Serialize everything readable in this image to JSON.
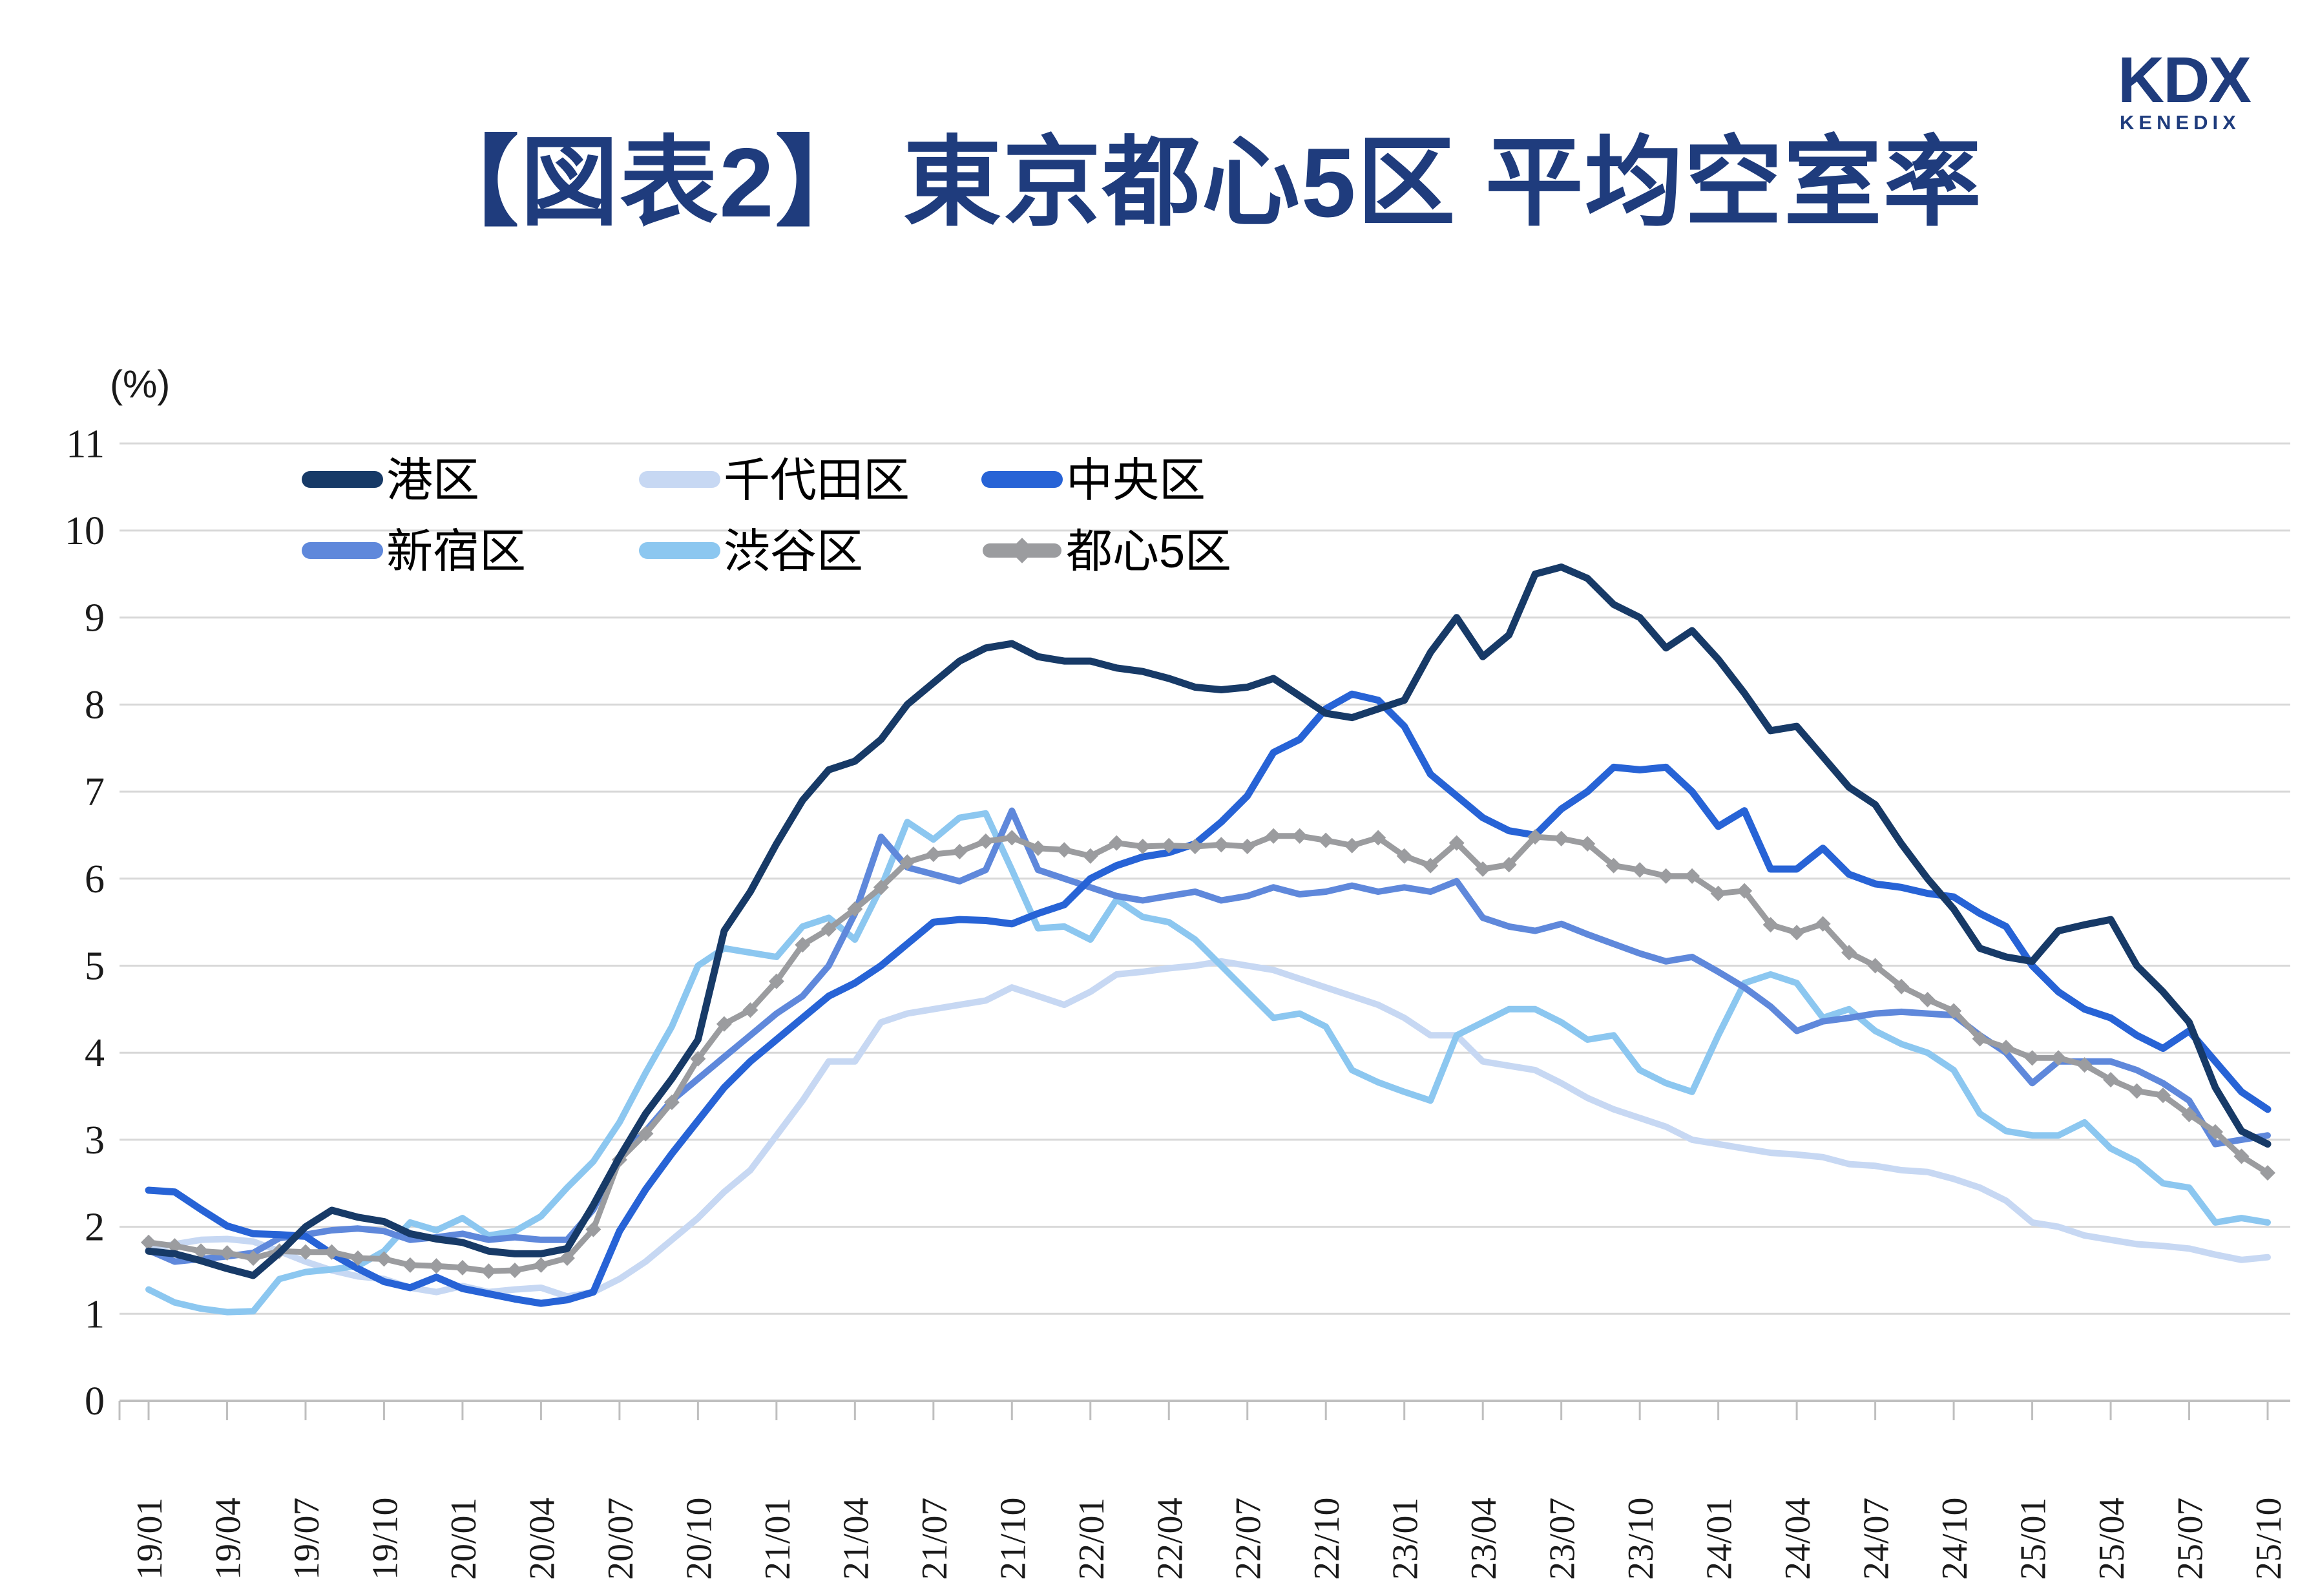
{
  "logo": {
    "brand": "KDX",
    "sub": "KENEDIX"
  },
  "title": "【図表2】 東京都心5区 平均空室率",
  "y_axis": {
    "unit_label": "(%)",
    "ticks": [
      0,
      1,
      2,
      3,
      4,
      5,
      6,
      7,
      8,
      9,
      10,
      11
    ]
  },
  "x_axis": {
    "tick_labels": [
      "19/01",
      "19/04",
      "19/07",
      "19/10",
      "20/01",
      "20/04",
      "20/07",
      "20/10",
      "21/01",
      "21/04",
      "21/07",
      "21/10",
      "22/01",
      "22/04",
      "22/07",
      "22/10",
      "23/01",
      "23/04",
      "23/07",
      "23/10",
      "24/01",
      "24/04",
      "24/07",
      "24/10",
      "25/01",
      "25/04",
      "25/07",
      "25/10"
    ]
  },
  "chart_data": {
    "type": "line",
    "title": "【図表2】 東京都心5区 平均空室率",
    "ylabel": "(%)",
    "ylim": [
      0,
      11
    ],
    "grid": true,
    "legend_position": "top-left-inside",
    "x_start": "19/01",
    "x_step_months": 1,
    "x": [
      "19/01",
      "19/02",
      "19/03",
      "19/04",
      "19/05",
      "19/06",
      "19/07",
      "19/08",
      "19/09",
      "19/10",
      "19/11",
      "19/12",
      "20/01",
      "20/02",
      "20/03",
      "20/04",
      "20/05",
      "20/06",
      "20/07",
      "20/08",
      "20/09",
      "20/10",
      "20/11",
      "20/12",
      "21/01",
      "21/02",
      "21/03",
      "21/04",
      "21/05",
      "21/06",
      "21/07",
      "21/08",
      "21/09",
      "21/10",
      "21/11",
      "21/12",
      "22/01",
      "22/02",
      "22/03",
      "22/04",
      "22/05",
      "22/06",
      "22/07",
      "22/08",
      "22/09",
      "22/10",
      "22/11",
      "22/12",
      "23/01",
      "23/02",
      "23/03",
      "23/04",
      "23/05",
      "23/06",
      "23/07",
      "23/08",
      "23/09",
      "23/10",
      "23/11",
      "23/12",
      "24/01",
      "24/02",
      "24/03",
      "24/04",
      "24/05",
      "24/06",
      "24/07",
      "24/08",
      "24/09",
      "24/10",
      "24/11",
      "24/12",
      "25/01",
      "25/02",
      "25/03",
      "25/04",
      "25/05",
      "25/06",
      "25/07",
      "25/08",
      "25/09",
      "25/10"
    ],
    "series": [
      {
        "name": "港区",
        "color": "#173A67",
        "marker": "none",
        "stroke_width": 11,
        "values": [
          1.72,
          1.69,
          1.61,
          1.52,
          1.44,
          1.7,
          2.0,
          2.19,
          2.11,
          2.06,
          1.92,
          1.86,
          1.82,
          1.72,
          1.69,
          1.69,
          1.75,
          2.25,
          2.8,
          3.3,
          3.7,
          4.15,
          5.4,
          5.85,
          6.4,
          6.9,
          7.25,
          7.35,
          7.6,
          8.0,
          8.25,
          8.5,
          8.65,
          8.7,
          8.55,
          8.5,
          8.5,
          8.42,
          8.38,
          8.3,
          8.2,
          8.17,
          8.2,
          8.3,
          8.1,
          7.9,
          7.85,
          7.95,
          8.05,
          8.6,
          9.0,
          8.55,
          8.8,
          9.5,
          9.58,
          9.45,
          9.15,
          9.0,
          8.65,
          8.85,
          8.52,
          8.13,
          7.7,
          7.75,
          7.4,
          7.05,
          6.85,
          6.4,
          6.0,
          5.65,
          5.2,
          5.1,
          5.05,
          5.4,
          5.47,
          5.53,
          5.0,
          4.7,
          4.35,
          3.6,
          3.1,
          2.95
        ]
      },
      {
        "name": "千代田区",
        "color": "#C7D8F3",
        "marker": "none",
        "stroke_width": 10,
        "values": [
          1.75,
          1.8,
          1.85,
          1.86,
          1.83,
          1.72,
          1.6,
          1.5,
          1.43,
          1.4,
          1.3,
          1.25,
          1.32,
          1.25,
          1.28,
          1.3,
          1.2,
          1.25,
          1.4,
          1.6,
          1.85,
          2.1,
          2.4,
          2.65,
          3.05,
          3.45,
          3.9,
          3.9,
          4.35,
          4.45,
          4.5,
          4.55,
          4.6,
          4.75,
          4.65,
          4.55,
          4.7,
          4.9,
          4.93,
          4.97,
          5.0,
          5.05,
          5.0,
          4.95,
          4.85,
          4.75,
          4.65,
          4.55,
          4.4,
          4.2,
          4.2,
          3.9,
          3.85,
          3.8,
          3.65,
          3.48,
          3.35,
          3.25,
          3.15,
          3.0,
          2.95,
          2.9,
          2.85,
          2.83,
          2.8,
          2.72,
          2.7,
          2.65,
          2.63,
          2.55,
          2.45,
          2.3,
          2.05,
          2.0,
          1.9,
          1.85,
          1.8,
          1.78,
          1.75,
          1.68,
          1.62,
          1.65
        ]
      },
      {
        "name": "中央区",
        "color": "#2763D6",
        "marker": "none",
        "stroke_width": 11,
        "values": [
          2.42,
          2.4,
          2.2,
          2.01,
          1.92,
          1.91,
          1.89,
          1.69,
          1.52,
          1.37,
          1.3,
          1.42,
          1.29,
          1.23,
          1.17,
          1.12,
          1.16,
          1.25,
          1.95,
          2.43,
          2.84,
          3.22,
          3.6,
          3.9,
          4.15,
          4.4,
          4.65,
          4.8,
          5.0,
          5.25,
          5.5,
          5.53,
          5.52,
          5.48,
          5.6,
          5.7,
          6.0,
          6.15,
          6.25,
          6.3,
          6.4,
          6.65,
          6.95,
          7.45,
          7.6,
          7.95,
          8.12,
          8.05,
          7.75,
          7.2,
          6.95,
          6.7,
          6.55,
          6.5,
          6.8,
          7.0,
          7.28,
          7.25,
          7.28,
          7.0,
          6.6,
          6.78,
          6.11,
          6.11,
          6.35,
          6.05,
          5.94,
          5.9,
          5.83,
          5.79,
          5.6,
          5.45,
          5.0,
          4.7,
          4.5,
          4.4,
          4.2,
          4.05,
          4.25,
          3.9,
          3.55,
          3.35
        ]
      },
      {
        "name": "新宿区",
        "color": "#5F88DB",
        "marker": "none",
        "stroke_width": 10,
        "values": [
          1.73,
          1.6,
          1.63,
          1.66,
          1.7,
          1.87,
          1.91,
          1.96,
          1.98,
          1.95,
          1.85,
          1.88,
          1.92,
          1.85,
          1.88,
          1.85,
          1.85,
          2.2,
          2.8,
          3.1,
          3.45,
          3.7,
          3.95,
          4.2,
          4.45,
          4.65,
          5.0,
          5.6,
          6.48,
          6.13,
          6.05,
          5.97,
          6.1,
          6.78,
          6.1,
          6.0,
          5.9,
          5.8,
          5.75,
          5.8,
          5.85,
          5.75,
          5.8,
          5.9,
          5.82,
          5.85,
          5.92,
          5.85,
          5.9,
          5.85,
          5.97,
          5.55,
          5.45,
          5.4,
          5.48,
          5.36,
          5.25,
          5.14,
          5.05,
          5.1,
          4.93,
          4.75,
          4.53,
          4.25,
          4.36,
          4.4,
          4.45,
          4.47,
          4.45,
          4.43,
          4.2,
          4.0,
          3.65,
          3.9,
          3.9,
          3.9,
          3.8,
          3.65,
          3.45,
          2.95,
          3.0,
          3.05
        ]
      },
      {
        "name": "渋谷区",
        "color": "#8CC7F0",
        "marker": "none",
        "stroke_width": 10,
        "values": [
          1.28,
          1.13,
          1.06,
          1.02,
          1.03,
          1.4,
          1.48,
          1.51,
          1.55,
          1.72,
          2.05,
          1.96,
          2.1,
          1.9,
          1.95,
          2.12,
          2.45,
          2.75,
          3.2,
          3.77,
          4.3,
          5.0,
          5.2,
          5.15,
          5.1,
          5.45,
          5.55,
          5.3,
          5.9,
          6.65,
          6.45,
          6.7,
          6.75,
          6.1,
          5.43,
          5.45,
          5.3,
          5.76,
          5.56,
          5.5,
          5.3,
          5.0,
          4.7,
          4.4,
          4.45,
          4.3,
          3.8,
          3.66,
          3.55,
          3.45,
          4.2,
          4.35,
          4.5,
          4.5,
          4.35,
          4.15,
          4.2,
          3.8,
          3.65,
          3.55,
          4.2,
          4.8,
          4.9,
          4.8,
          4.4,
          4.5,
          4.25,
          4.1,
          4.0,
          3.8,
          3.3,
          3.1,
          3.05,
          3.05,
          3.2,
          2.9,
          2.75,
          2.5,
          2.45,
          2.05,
          2.1,
          2.05
        ]
      },
      {
        "name": "都心5区",
        "color": "#9B9C9F",
        "marker": "diamond",
        "stroke_width": 9,
        "values": [
          1.82,
          1.78,
          1.72,
          1.7,
          1.64,
          1.72,
          1.71,
          1.71,
          1.64,
          1.63,
          1.56,
          1.55,
          1.53,
          1.49,
          1.5,
          1.56,
          1.64,
          1.97,
          2.77,
          3.07,
          3.43,
          3.93,
          4.33,
          4.49,
          4.82,
          5.24,
          5.42,
          5.65,
          5.9,
          6.19,
          6.28,
          6.31,
          6.43,
          6.47,
          6.35,
          6.33,
          6.26,
          6.41,
          6.37,
          6.38,
          6.37,
          6.39,
          6.37,
          6.49,
          6.49,
          6.44,
          6.38,
          6.47,
          6.26,
          6.15,
          6.41,
          6.11,
          6.16,
          6.48,
          6.46,
          6.4,
          6.15,
          6.1,
          6.03,
          6.03,
          5.83,
          5.86,
          5.47,
          5.38,
          5.48,
          5.15,
          5.0,
          4.76,
          4.61,
          4.48,
          4.16,
          4.06,
          3.94,
          3.94,
          3.86,
          3.69,
          3.56,
          3.51,
          3.29,
          3.09,
          2.81,
          2.62
        ]
      }
    ]
  }
}
